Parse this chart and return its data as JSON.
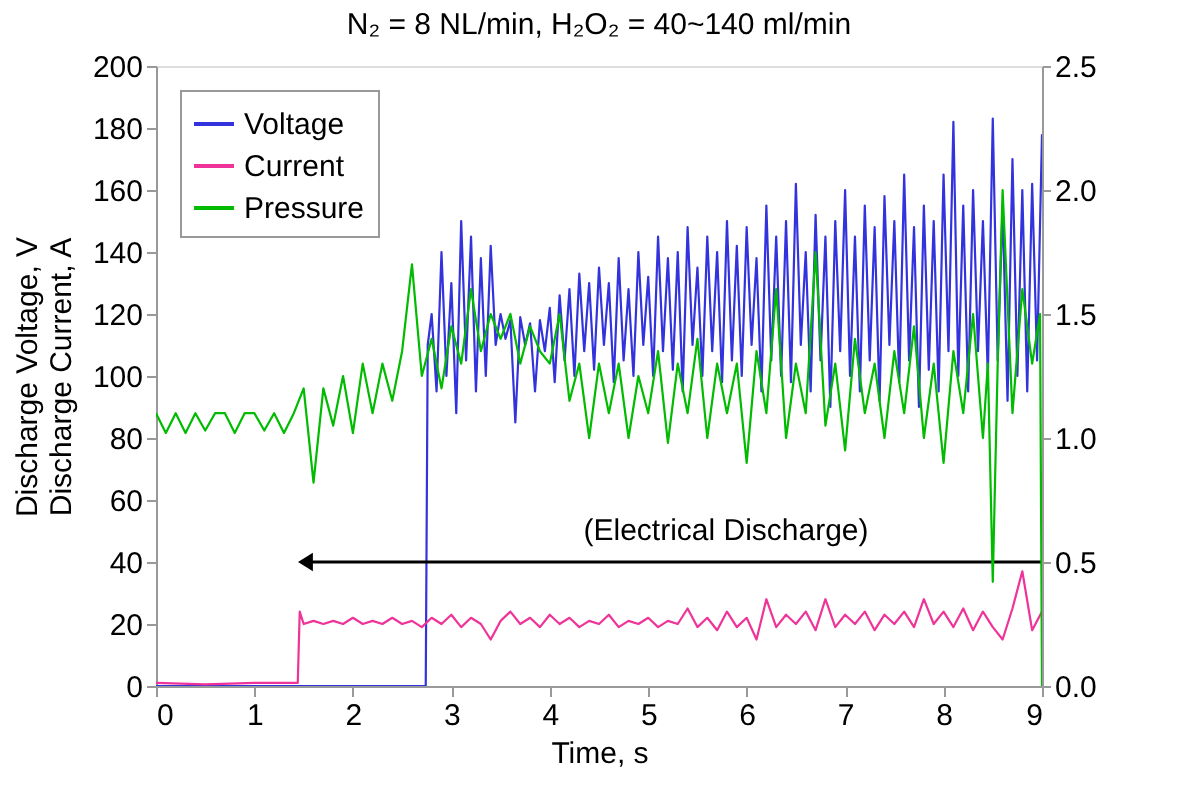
{
  "chart_data": {
    "type": "line",
    "title": "N₂ = 8 NL/min, H₂O₂ = 40~140 ml/min",
    "xlabel": "Time, s",
    "ylabel": "Discharge Voltage, V\nDischarge Current, A",
    "xlim": [
      0,
      9
    ],
    "xticks": [
      0,
      1,
      2,
      3,
      4,
      5,
      6,
      7,
      8,
      9
    ],
    "ylim": [
      0,
      200
    ],
    "yticks": [
      0,
      20,
      40,
      60,
      80,
      100,
      120,
      140,
      160,
      180,
      200
    ],
    "y2lim": [
      0,
      2.5
    ],
    "y2ticks": [
      {
        "value": 0,
        "label": "0.0"
      },
      {
        "value": 0.5,
        "label": "0.5"
      },
      {
        "value": 1,
        "label": "1.0"
      },
      {
        "value": 1.5,
        "label": "1.5"
      },
      {
        "value": 2,
        "label": "2.0"
      },
      {
        "value": 2.5,
        "label": "2.5"
      }
    ],
    "grid": false,
    "legend": "top left",
    "marker": "none",
    "line_style": "solid",
    "annotations": [
      "(Electrical Discharge)"
    ],
    "series": [
      {
        "name": "Voltage",
        "color": "#3333dd",
        "x": [
          0,
          2.74,
          2.76,
          2.8,
          2.85,
          2.9,
          2.95,
          3.0,
          3.05,
          3.1,
          3.15,
          3.2,
          3.25,
          3.3,
          3.35,
          3.4,
          3.45,
          3.5,
          3.55,
          3.6,
          3.65,
          3.7,
          3.75,
          3.8,
          3.85,
          3.9,
          3.95,
          4.0,
          4.05,
          4.1,
          4.15,
          4.2,
          4.25,
          4.3,
          4.35,
          4.4,
          4.45,
          4.5,
          4.55,
          4.6,
          4.65,
          4.7,
          4.75,
          4.8,
          4.85,
          4.9,
          4.95,
          5.0,
          5.05,
          5.1,
          5.15,
          5.2,
          5.25,
          5.3,
          5.35,
          5.4,
          5.45,
          5.5,
          5.55,
          5.6,
          5.65,
          5.7,
          5.75,
          5.8,
          5.85,
          5.9,
          5.95,
          6.0,
          6.05,
          6.1,
          6.15,
          6.2,
          6.25,
          6.3,
          6.35,
          6.4,
          6.45,
          6.5,
          6.55,
          6.6,
          6.65,
          6.7,
          6.75,
          6.8,
          6.85,
          6.9,
          6.95,
          7.0,
          7.05,
          7.1,
          7.15,
          7.2,
          7.25,
          7.3,
          7.35,
          7.4,
          7.45,
          7.5,
          7.55,
          7.6,
          7.65,
          7.7,
          7.75,
          7.8,
          7.85,
          7.9,
          7.95,
          8.0,
          8.05,
          8.1,
          8.15,
          8.2,
          8.25,
          8.3,
          8.35,
          8.4,
          8.45,
          8.5,
          8.55,
          8.6,
          8.65,
          8.7,
          8.75,
          8.8,
          8.85,
          8.9,
          8.95,
          9.0
        ],
        "values": [
          0,
          0,
          110,
          120,
          95,
          140,
          100,
          130,
          88,
          150,
          105,
          145,
          95,
          138,
          100,
          142,
          110,
          120,
          112,
          118,
          85,
          119,
          110,
          117,
          95,
          118,
          108,
          122,
          98,
          126,
          105,
          128,
          100,
          133,
          108,
          130,
          102,
          135,
          110,
          130,
          98,
          138,
          105,
          128,
          100,
          140,
          110,
          132,
          100,
          145,
          108,
          138,
          102,
          140,
          95,
          148,
          110,
          135,
          100,
          145,
          108,
          140,
          98,
          150,
          105,
          142,
          100,
          148,
          110,
          138,
          95,
          155,
          105,
          145,
          100,
          150,
          98,
          162,
          110,
          140,
          95,
          152,
          105,
          145,
          90,
          150,
          108,
          160,
          100,
          145,
          95,
          155,
          105,
          148,
          92,
          158,
          110,
          150,
          98,
          165,
          105,
          148,
          90,
          155,
          102,
          150,
          95,
          165,
          108,
          182,
          100,
          155,
          95,
          160,
          108,
          150,
          100,
          183,
          105,
          155,
          92,
          170,
          100,
          160,
          95,
          162,
          105,
          178
        ]
      },
      {
        "name": "Current",
        "color": "#ee3399",
        "x": [
          0,
          0.5,
          1.0,
          1.44,
          1.46,
          1.5,
          1.6,
          1.7,
          1.8,
          1.9,
          2.0,
          2.1,
          2.2,
          2.3,
          2.4,
          2.5,
          2.6,
          2.7,
          2.8,
          2.9,
          3.0,
          3.1,
          3.2,
          3.3,
          3.4,
          3.5,
          3.6,
          3.7,
          3.8,
          3.9,
          4.0,
          4.1,
          4.2,
          4.3,
          4.4,
          4.5,
          4.6,
          4.7,
          4.8,
          4.9,
          5.0,
          5.1,
          5.2,
          5.3,
          5.4,
          5.5,
          5.6,
          5.7,
          5.8,
          5.9,
          6.0,
          6.1,
          6.2,
          6.3,
          6.4,
          6.5,
          6.6,
          6.7,
          6.8,
          6.9,
          7.0,
          7.1,
          7.2,
          7.3,
          7.4,
          7.5,
          7.6,
          7.7,
          7.8,
          7.9,
          8.0,
          8.1,
          8.2,
          8.3,
          8.4,
          8.5,
          8.6,
          8.7,
          8.8,
          8.9,
          9.0
        ],
        "values": [
          1,
          0.5,
          1,
          1,
          24,
          20,
          21,
          20,
          21,
          20,
          22,
          20,
          21,
          20,
          22,
          20,
          21,
          19,
          22,
          20,
          23,
          19,
          22,
          20,
          15,
          21,
          24,
          20,
          22,
          19,
          23,
          20,
          22,
          19,
          21,
          20,
          23,
          19,
          21,
          20,
          22,
          19,
          21,
          20,
          25,
          19,
          22,
          18,
          24,
          19,
          22,
          15,
          28,
          19,
          23,
          20,
          24,
          18,
          28,
          19,
          23,
          20,
          24,
          18,
          23,
          20,
          24,
          19,
          28,
          20,
          24,
          19,
          25,
          18,
          24,
          19,
          15,
          25,
          37,
          18,
          24
        ]
      },
      {
        "name": "Pressure",
        "color": "#00bb00",
        "axis": "y2",
        "x": [
          0,
          0.1,
          0.2,
          0.3,
          0.4,
          0.5,
          0.6,
          0.7,
          0.8,
          0.9,
          1.0,
          1.1,
          1.2,
          1.3,
          1.4,
          1.5,
          1.6,
          1.7,
          1.8,
          1.9,
          2.0,
          2.1,
          2.2,
          2.3,
          2.4,
          2.5,
          2.6,
          2.7,
          2.8,
          2.9,
          3.0,
          3.1,
          3.2,
          3.3,
          3.4,
          3.5,
          3.6,
          3.7,
          3.8,
          3.9,
          4.0,
          4.1,
          4.2,
          4.3,
          4.4,
          4.5,
          4.6,
          4.7,
          4.8,
          4.9,
          5.0,
          5.1,
          5.2,
          5.3,
          5.4,
          5.5,
          5.6,
          5.7,
          5.8,
          5.9,
          6.0,
          6.1,
          6.2,
          6.3,
          6.4,
          6.5,
          6.6,
          6.7,
          6.8,
          6.9,
          7.0,
          7.1,
          7.2,
          7.3,
          7.4,
          7.5,
          7.6,
          7.7,
          7.8,
          7.9,
          8.0,
          8.1,
          8.2,
          8.3,
          8.4,
          8.45,
          8.5,
          8.55,
          8.6,
          8.7,
          8.8,
          8.9,
          8.98,
          9.0
        ],
        "values": [
          1.1,
          1.02,
          1.1,
          1.02,
          1.1,
          1.03,
          1.1,
          1.1,
          1.02,
          1.1,
          1.1,
          1.03,
          1.1,
          1.02,
          1.1,
          1.2,
          0.82,
          1.2,
          1.05,
          1.25,
          1.02,
          1.3,
          1.1,
          1.3,
          1.15,
          1.35,
          1.7,
          1.25,
          1.4,
          1.2,
          1.45,
          1.3,
          1.6,
          1.35,
          1.5,
          1.4,
          1.5,
          1.3,
          1.45,
          1.35,
          1.3,
          1.5,
          1.15,
          1.3,
          1.0,
          1.3,
          1.1,
          1.3,
          1.0,
          1.25,
          1.1,
          1.35,
          0.98,
          1.3,
          1.1,
          1.4,
          1.0,
          1.3,
          1.1,
          1.3,
          0.9,
          1.35,
          1.1,
          1.6,
          1.0,
          1.3,
          1.1,
          1.75,
          1.05,
          1.3,
          0.95,
          1.4,
          1.1,
          1.3,
          1.0,
          1.35,
          1.1,
          1.45,
          1.0,
          1.3,
          0.9,
          1.35,
          1.1,
          1.5,
          1.0,
          1.3,
          0.42,
          1.3,
          2.0,
          1.1,
          1.6,
          1.3,
          1.5,
          0
        ]
      }
    ]
  }
}
